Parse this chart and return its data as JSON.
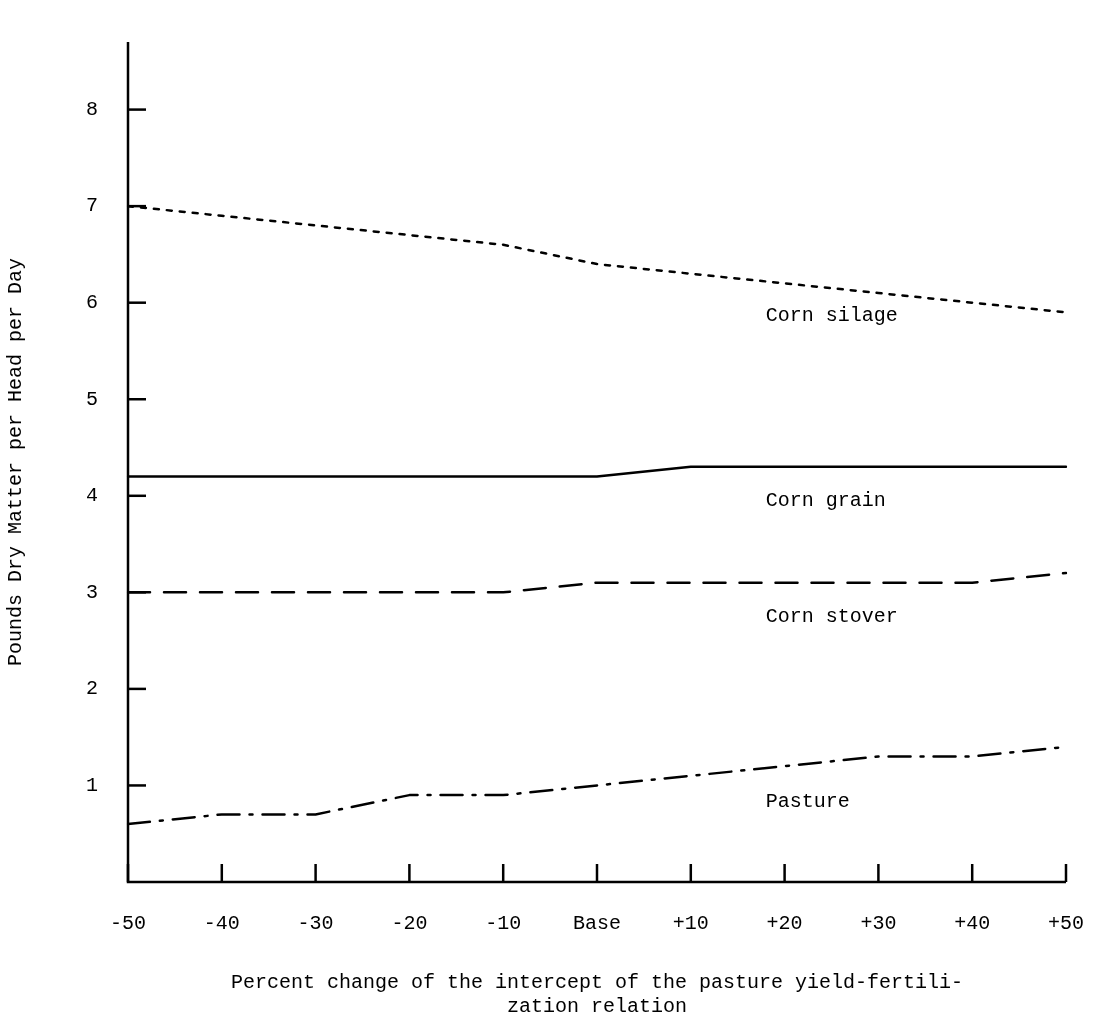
{
  "chart_data": {
    "type": "line",
    "xlabel": "Percent change of the intercept of the pasture yield-fertili-\nzation relation",
    "ylabel": "Pounds Dry Matter per Head per Day",
    "categories": [
      "-50",
      "-40",
      "-30",
      "-20",
      "-10",
      "Base",
      "+10",
      "+20",
      "+30",
      "+40",
      "+50"
    ],
    "ylim": [
      0,
      8.7
    ],
    "yticks": [
      1,
      2,
      3,
      4,
      5,
      6,
      7,
      8
    ],
    "grid": false,
    "legend": false,
    "marker": "none",
    "series": [
      {
        "name": "Corn silage",
        "color": "#000000",
        "line_style": "dotted",
        "values": [
          7.0,
          6.9,
          6.8,
          6.7,
          6.6,
          6.4,
          6.3,
          6.2,
          6.1,
          6.0,
          5.9
        ]
      },
      {
        "name": "Corn grain",
        "color": "#000000",
        "line_style": "solid",
        "values": [
          4.2,
          4.2,
          4.2,
          4.2,
          4.2,
          4.2,
          4.3,
          4.3,
          4.3,
          4.3,
          4.3
        ]
      },
      {
        "name": "Corn stover",
        "color": "#000000",
        "line_style": "dashed",
        "values": [
          3.0,
          3.0,
          3.0,
          3.0,
          3.0,
          3.1,
          3.1,
          3.1,
          3.1,
          3.1,
          3.2
        ]
      },
      {
        "name": "Pasture",
        "color": "#000000",
        "line_style": "dashdot",
        "values": [
          0.6,
          0.7,
          0.7,
          0.9,
          0.9,
          1.0,
          1.1,
          1.2,
          1.3,
          1.3,
          1.4
        ]
      }
    ]
  }
}
